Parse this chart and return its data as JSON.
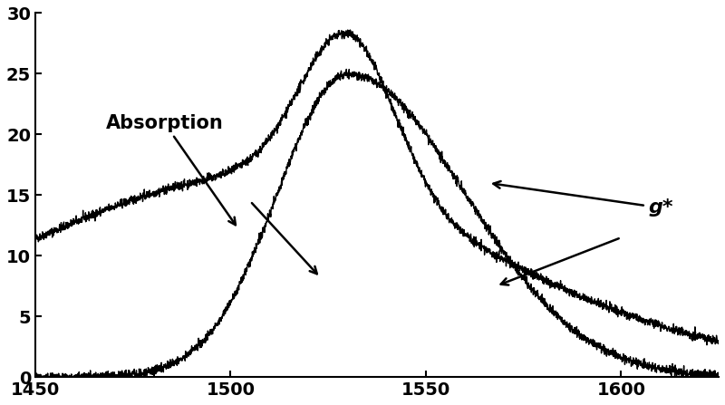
{
  "x_min": 1450,
  "x_max": 1625,
  "y_min": 0,
  "y_max": 30,
  "x_ticks": [
    1450,
    1500,
    1550,
    1600
  ],
  "y_ticks": [
    0,
    5,
    10,
    15,
    20,
    25,
    30
  ],
  "background_color": "#ffffff",
  "line_color": "#000000",
  "annotation_absorption": "Absorption",
  "annotation_gstar": "g*",
  "figsize": [
    8.0,
    4.47
  ],
  "dpi": 100,
  "noise_std": 0.18
}
